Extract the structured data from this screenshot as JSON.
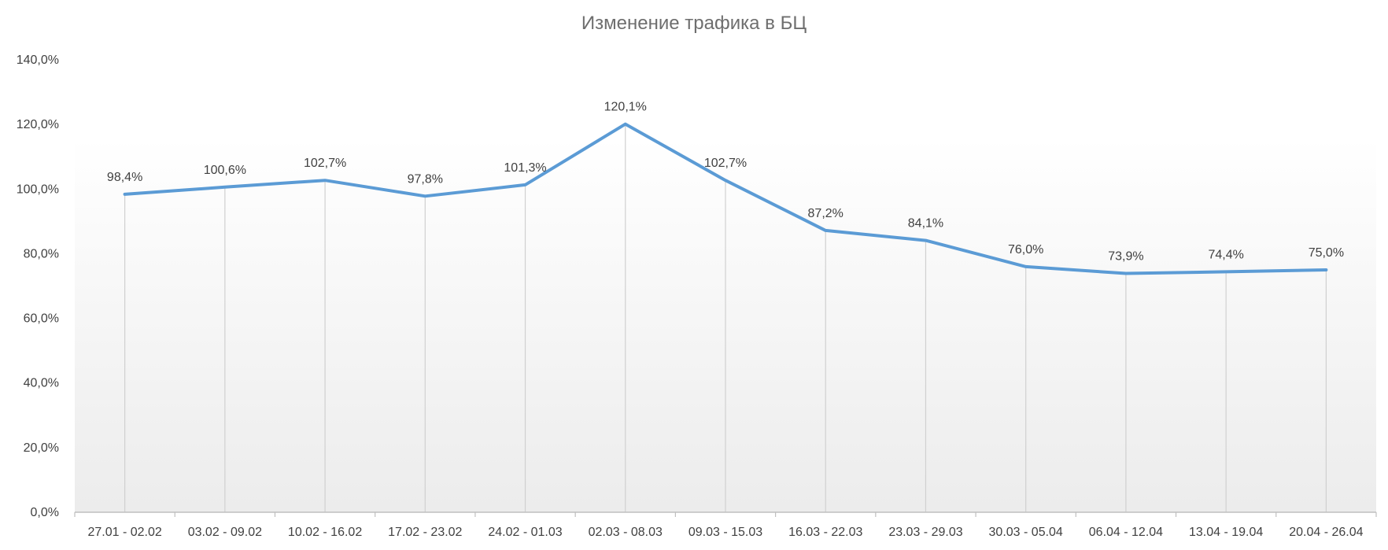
{
  "chart_data": {
    "type": "line",
    "title": "Изменение трафика в БЦ",
    "xlabel": "",
    "ylabel": "",
    "categories": [
      "27.01 - 02.02",
      "03.02 - 09.02",
      "10.02 - 16.02",
      "17.02 - 23.02",
      "24.02 - 01.03",
      "02.03 - 08.03",
      "09.03 - 15.03",
      "16.03 - 22.03",
      "23.03 - 29.03",
      "30.03 - 05.04",
      "06.04 - 12.04",
      "13.04 - 19.04",
      "20.04 - 26.04"
    ],
    "series": [
      {
        "values": [
          98.4,
          100.6,
          102.7,
          97.8,
          101.3,
          120.1,
          102.7,
          87.2,
          84.1,
          76.0,
          73.9,
          74.4,
          75.0
        ],
        "labels": [
          "98,4%",
          "100,6%",
          "102,7%",
          "97,8%",
          "101,3%",
          "120,1%",
          "102,7%",
          "87,2%",
          "84,1%",
          "76,0%",
          "73,9%",
          "74,4%",
          "75,0%"
        ],
        "color": "#5b9bd5"
      }
    ],
    "ylim": [
      0,
      140
    ],
    "yticks": [
      0,
      20,
      40,
      60,
      80,
      100,
      120,
      140
    ],
    "ytick_labels": [
      "0,0%",
      "20,0%",
      "40,0%",
      "60,0%",
      "80,0%",
      "100,0%",
      "120,0%",
      "140,0%"
    ],
    "grid": false,
    "drop_lines": true,
    "legend": "none"
  }
}
